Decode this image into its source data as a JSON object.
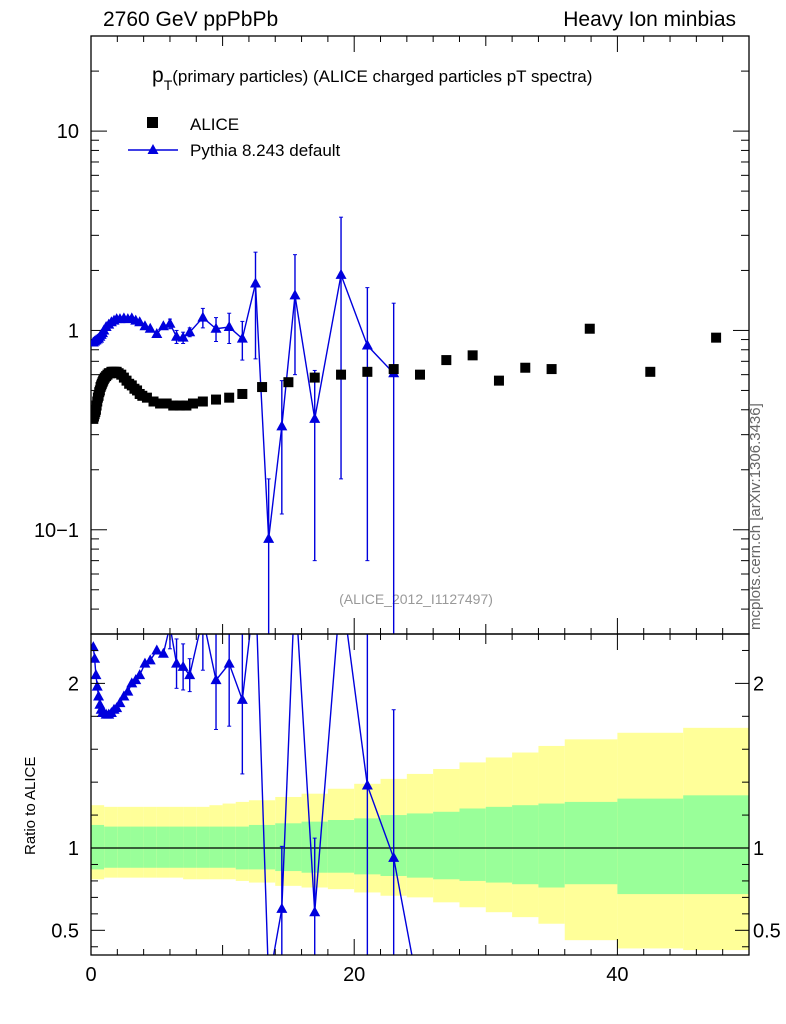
{
  "header": {
    "left": "2760 GeV ppPbPb",
    "right": "Heavy Ion minbias"
  },
  "side_label": "mcplots.cern.ch [arXiv:1306.3436]",
  "colors": {
    "data": "#000000",
    "mc": "#0000dd",
    "band_inner": "#99ff99",
    "band_outer": "#ffff99",
    "watermark": "#999999"
  },
  "chart_data": {
    "type": "scatter",
    "title": "p_T(primary particles) (ALICE charged particles pT spectra)",
    "title_main": "p",
    "title_sub": "T",
    "title_rest": "(primary particles) (ALICE charged particles pT spectra)",
    "watermark": "(ALICE_2012_I1127497)",
    "xlabel": "",
    "xlim": [
      0,
      50
    ],
    "x_ticks": [
      "0",
      "20",
      "40"
    ],
    "y_top": {
      "scale": "log",
      "ylim": [
        0.03,
        30
      ],
      "ticks": [
        "10",
        "1",
        "10−1"
      ]
    },
    "y_ratio": {
      "label": "Ratio to ALICE",
      "ylim": [
        0.35,
        2.3
      ],
      "ticks": [
        "0.5",
        "1",
        "2"
      ]
    },
    "legend": [
      {
        "name": "ALICE",
        "marker": "square"
      },
      {
        "name": "Pythia 8.243 default",
        "marker": "triangle"
      }
    ],
    "series": [
      {
        "name": "ALICE",
        "x": [
          0.175,
          0.225,
          0.275,
          0.325,
          0.375,
          0.425,
          0.475,
          0.525,
          0.575,
          0.625,
          0.675,
          0.725,
          0.775,
          0.825,
          0.875,
          0.925,
          0.975,
          1.05,
          1.15,
          1.25,
          1.35,
          1.45,
          1.55,
          1.65,
          1.75,
          1.85,
          1.95,
          2.1,
          2.3,
          2.5,
          2.7,
          2.9,
          3.1,
          3.3,
          3.5,
          3.7,
          3.9,
          4.25,
          4.75,
          5.25,
          5.75,
          6.25,
          6.75,
          7.25,
          7.75,
          8.5,
          9.5,
          10.5,
          11.5,
          13,
          15,
          17,
          19,
          21,
          23,
          25,
          27,
          29,
          31,
          33,
          35,
          37.9,
          42.5,
          47.5
        ],
        "values": [
          0.36,
          0.37,
          0.38,
          0.39,
          0.4,
          0.42,
          0.44,
          0.46,
          0.47,
          0.49,
          0.5,
          0.52,
          0.53,
          0.54,
          0.55,
          0.56,
          0.57,
          0.58,
          0.59,
          0.6,
          0.61,
          0.61,
          0.62,
          0.62,
          0.62,
          0.62,
          0.62,
          0.61,
          0.6,
          0.58,
          0.56,
          0.54,
          0.53,
          0.51,
          0.5,
          0.48,
          0.47,
          0.46,
          0.44,
          0.43,
          0.43,
          0.42,
          0.42,
          0.42,
          0.43,
          0.44,
          0.45,
          0.46,
          0.48,
          0.52,
          0.55,
          0.58,
          0.6,
          0.62,
          0.64,
          0.6,
          0.71,
          0.75,
          0.56,
          0.65,
          0.64,
          1.02,
          0.62,
          0.92
        ]
      },
      {
        "name": "Pythia 8.243 default",
        "x": [
          0.175,
          0.275,
          0.375,
          0.475,
          0.575,
          0.675,
          0.775,
          0.875,
          0.975,
          1.15,
          1.35,
          1.55,
          1.75,
          1.95,
          2.2,
          2.5,
          2.8,
          3.1,
          3.4,
          3.7,
          4.1,
          4.5,
          5.0,
          5.5,
          6.0,
          6.5,
          7.0,
          7.5,
          8.5,
          9.5,
          10.5,
          11.5,
          12.5,
          13.5,
          14.5,
          15.5,
          17,
          19,
          21,
          23
        ],
        "values": [
          0.87,
          0.88,
          0.89,
          0.9,
          0.91,
          0.93,
          0.95,
          0.97,
          1.0,
          1.04,
          1.07,
          1.1,
          1.12,
          1.14,
          1.14,
          1.15,
          1.14,
          1.15,
          1.12,
          1.1,
          1.05,
          1.02,
          0.96,
          1.05,
          1.08,
          0.93,
          0.92,
          0.98,
          1.16,
          1.02,
          1.04,
          0.91,
          1.72,
          0.09,
          0.33,
          1.5,
          0.36,
          1.9,
          0.84,
          0.61
        ],
        "err_low": [
          0,
          0,
          0,
          0,
          0,
          0,
          0,
          0,
          0,
          0,
          0,
          0,
          0,
          0,
          0,
          0,
          0,
          0,
          0,
          0,
          0,
          0,
          0,
          0,
          0.06,
          0.07,
          0.06,
          0.05,
          0.13,
          0.14,
          0.18,
          0.2,
          1.0,
          0.08,
          0.21,
          0.9,
          0.29,
          1.72,
          0.77,
          0.58
        ],
        "err_high": [
          0,
          0,
          0,
          0,
          0,
          0,
          0,
          0,
          0,
          0,
          0,
          0,
          0,
          0,
          0,
          0,
          0,
          0,
          0,
          0,
          0,
          0,
          0,
          0,
          0.06,
          0.07,
          0.06,
          0.05,
          0.13,
          0.14,
          0.18,
          0.2,
          0.75,
          0.09,
          0.23,
          0.9,
          0.27,
          1.8,
          0.8,
          0.76
        ]
      }
    ],
    "ratio": {
      "x": [
        0.175,
        0.275,
        0.375,
        0.475,
        0.575,
        0.675,
        0.775,
        0.875,
        0.975,
        1.15,
        1.35,
        1.55,
        1.75,
        1.95,
        2.2,
        2.5,
        2.8,
        3.1,
        3.4,
        3.7,
        4.1,
        4.5,
        5.0,
        5.5,
        6.0,
        6.5,
        7.0,
        7.5,
        8.5,
        9.5,
        10.5,
        11.5,
        12.5,
        13.5,
        14.5,
        15.5,
        17,
        19,
        21,
        23,
        24.5
      ],
      "values": [
        2.22,
        2.15,
        2.05,
        1.98,
        1.92,
        1.87,
        1.84,
        1.82,
        1.82,
        1.81,
        1.81,
        1.82,
        1.84,
        1.85,
        1.88,
        1.92,
        1.95,
        2.0,
        2.02,
        2.05,
        2.12,
        2.14,
        2.2,
        2.18,
        2.35,
        2.12,
        2.1,
        2.05,
        2.4,
        2.02,
        2.12,
        1.9,
        2.6,
        0.18,
        0.63,
        2.6,
        0.61,
        2.6,
        1.38,
        0.94,
        0.3
      ],
      "err_low": [
        0,
        0,
        0,
        0,
        0,
        0,
        0,
        0,
        0,
        0,
        0,
        0,
        0,
        0,
        0,
        0,
        0,
        0,
        0,
        0,
        0,
        0,
        0,
        0,
        0.14,
        0.15,
        0.14,
        0.1,
        0.32,
        0.3,
        0.38,
        0.45,
        0,
        0,
        0.4,
        0,
        0.5,
        0,
        1.3,
        0.9,
        0
      ],
      "err_high": [
        0,
        0,
        0,
        0,
        0,
        0,
        0,
        0,
        0,
        0,
        0,
        0,
        0,
        0,
        0,
        0,
        0,
        0,
        0,
        0,
        0,
        0,
        0,
        0,
        0.14,
        0.15,
        0.14,
        0.1,
        0.32,
        0.3,
        0.38,
        0.45,
        0,
        0,
        0.38,
        0,
        0.45,
        0,
        1.3,
        0.9,
        0
      ],
      "band_edges": [
        0,
        1,
        2,
        3,
        4,
        5,
        6,
        7,
        8,
        9,
        10,
        11,
        12,
        14,
        16,
        18,
        20,
        22,
        24,
        26,
        28,
        30,
        32,
        34,
        36,
        40,
        45,
        50
      ],
      "band_inner_low": [
        0.87,
        0.88,
        0.88,
        0.88,
        0.88,
        0.88,
        0.88,
        0.88,
        0.88,
        0.88,
        0.88,
        0.87,
        0.87,
        0.86,
        0.85,
        0.85,
        0.84,
        0.83,
        0.82,
        0.81,
        0.8,
        0.79,
        0.78,
        0.76,
        0.78,
        0.72,
        0.72
      ],
      "band_inner_high": [
        1.14,
        1.13,
        1.13,
        1.13,
        1.13,
        1.13,
        1.13,
        1.13,
        1.13,
        1.13,
        1.13,
        1.13,
        1.14,
        1.15,
        1.16,
        1.17,
        1.18,
        1.2,
        1.21,
        1.22,
        1.24,
        1.25,
        1.26,
        1.27,
        1.28,
        1.3,
        1.32
      ],
      "band_outer_low": [
        0.81,
        0.82,
        0.82,
        0.82,
        0.82,
        0.82,
        0.82,
        0.81,
        0.81,
        0.81,
        0.81,
        0.8,
        0.79,
        0.77,
        0.76,
        0.75,
        0.73,
        0.71,
        0.7,
        0.67,
        0.64,
        0.61,
        0.58,
        0.54,
        0.44,
        0.39,
        0.38
      ],
      "band_outer_high": [
        1.26,
        1.25,
        1.25,
        1.25,
        1.25,
        1.25,
        1.25,
        1.25,
        1.25,
        1.26,
        1.27,
        1.28,
        1.29,
        1.31,
        1.33,
        1.36,
        1.39,
        1.42,
        1.45,
        1.48,
        1.52,
        1.55,
        1.58,
        1.62,
        1.66,
        1.7,
        1.73
      ]
    }
  }
}
